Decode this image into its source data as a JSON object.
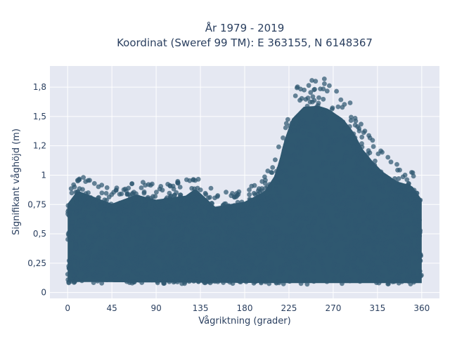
{
  "chart_data": {
    "type": "scatter",
    "title_line1": "År 1979 - 2019",
    "title_line2": "Koordinat (Sweref 99 TM): E 363155, N 6148367",
    "xlabel": "Vågriktning (grader)",
    "ylabel": "Signifikant våghöjd (m)",
    "xlim": [
      -18,
      378
    ],
    "ylim": [
      -0.05,
      1.93
    ],
    "x_ticks": [
      0,
      45,
      90,
      135,
      180,
      225,
      270,
      315,
      360
    ],
    "x_tick_labels": [
      "0",
      "45",
      "90",
      "135",
      "180",
      "225",
      "270",
      "315",
      "360"
    ],
    "y_ticks": [
      0,
      0.25,
      0.5,
      0.75,
      1,
      1.25,
      1.5,
      1.75
    ],
    "y_tick_labels": [
      "0",
      "0,25",
      "0,5",
      "0,75",
      "1",
      "1,2",
      "1,5",
      "1,8"
    ],
    "grid": true,
    "colors": {
      "marker": "#2f5870",
      "plot_bg": "#e5e8f2",
      "text": "#2a3f5f"
    },
    "series": [
      {
        "x_range": [
          0,
          360
        ],
        "min_wave_height": [
          [
            0,
            0.06
          ],
          [
            225,
            0.05
          ],
          [
            360,
            0.05
          ]
        ],
        "upper_envelope": [
          [
            0,
            0.88
          ],
          [
            10,
            1.01
          ],
          [
            45,
            0.88
          ],
          [
            70,
            0.97
          ],
          [
            90,
            0.92
          ],
          [
            120,
            0.96
          ],
          [
            130,
            1.03
          ],
          [
            150,
            0.85
          ],
          [
            180,
            0.9
          ],
          [
            190,
            0.95
          ],
          [
            200,
            1.0
          ],
          [
            210,
            1.15
          ],
          [
            215,
            1.3
          ],
          [
            220,
            1.5
          ],
          [
            228,
            1.72
          ],
          [
            240,
            1.84
          ],
          [
            255,
            1.85
          ],
          [
            265,
            1.82
          ],
          [
            280,
            1.72
          ],
          [
            290,
            1.6
          ],
          [
            300,
            1.42
          ],
          [
            310,
            1.3
          ],
          [
            320,
            1.2
          ],
          [
            335,
            1.1
          ],
          [
            350,
            1.06
          ],
          [
            360,
            0.92
          ]
        ]
      }
    ]
  }
}
